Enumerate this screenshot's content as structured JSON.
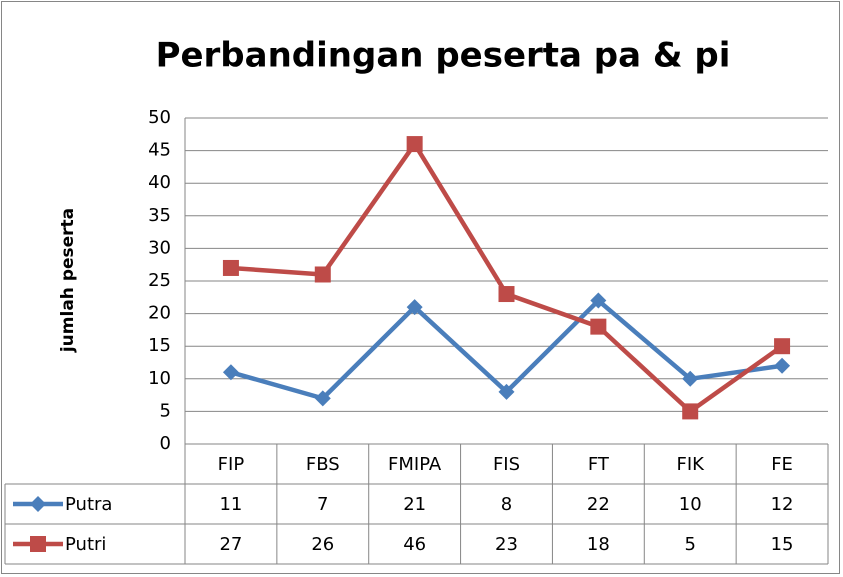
{
  "chart_data": {
    "type": "line",
    "title": "Perbandingan peserta pa & pi",
    "y_label": "jumlah peserta",
    "categories": [
      "FIP",
      "FBS",
      "FMIPA",
      "FIS",
      "FT",
      "FIK",
      "FE"
    ],
    "series": [
      {
        "name": "Putra",
        "color": "#4a7ebb",
        "marker": "diamond",
        "values": [
          11,
          7,
          21,
          8,
          22,
          10,
          12
        ]
      },
      {
        "name": "Putri",
        "color": "#be4b48",
        "marker": "square",
        "values": [
          27,
          26,
          46,
          23,
          18,
          5,
          15
        ]
      }
    ],
    "ylim": [
      0,
      50
    ],
    "yticks": [
      0,
      5,
      10,
      15,
      20,
      25,
      30,
      35,
      40,
      45,
      50
    ],
    "grid": true,
    "data_table": true
  }
}
